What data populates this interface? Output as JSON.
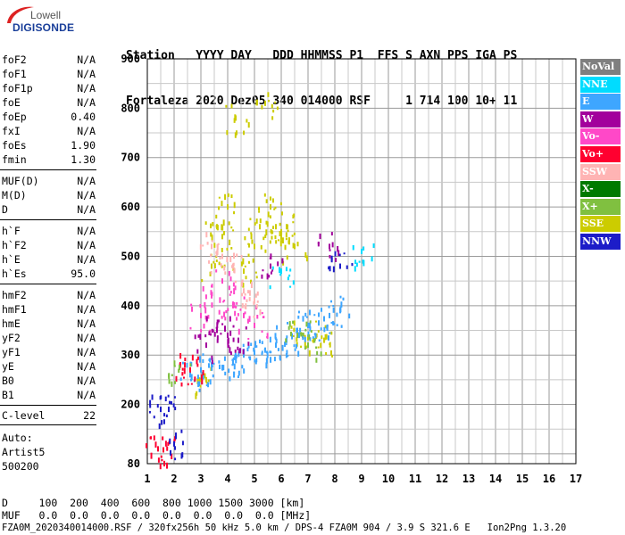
{
  "logo": {
    "top": "Lowell",
    "bottom": "DIGISONDE"
  },
  "header": {
    "line1": "Station   YYYY DAY   DDD HHMMSS P1  FFS S AXN PPS IGA PS",
    "line2": "Fortaleza 2020 Dez05 340 014000 RSF     1 714 100 10+ 11"
  },
  "params": {
    "g1": [
      {
        "name": "foF2",
        "value": "N/A"
      },
      {
        "name": "foF1",
        "value": "N/A"
      },
      {
        "name": "foF1p",
        "value": "N/A"
      },
      {
        "name": "foE",
        "value": "N/A"
      },
      {
        "name": "foEp",
        "value": "0.40"
      },
      {
        "name": "fxI",
        "value": "N/A"
      },
      {
        "name": "foEs",
        "value": "1.90"
      },
      {
        "name": "fmin",
        "value": "1.30"
      }
    ],
    "g2": [
      {
        "name": "MUF(D)",
        "value": "N/A"
      },
      {
        "name": "M(D)",
        "value": "N/A"
      },
      {
        "name": "D",
        "value": "N/A"
      }
    ],
    "g3": [
      {
        "name": "h`F",
        "value": "N/A"
      },
      {
        "name": "h`F2",
        "value": "N/A"
      },
      {
        "name": "h`E",
        "value": "N/A"
      },
      {
        "name": "h`Es",
        "value": "95.0"
      }
    ],
    "g4": [
      {
        "name": "hmF2",
        "value": "N/A"
      },
      {
        "name": "hmF1",
        "value": "N/A"
      },
      {
        "name": "hmE",
        "value": "N/A"
      },
      {
        "name": "yF2",
        "value": "N/A"
      },
      {
        "name": "yF1",
        "value": "N/A"
      },
      {
        "name": "yE",
        "value": "N/A"
      },
      {
        "name": "B0",
        "value": "N/A"
      },
      {
        "name": "B1",
        "value": "N/A"
      }
    ],
    "clevel": {
      "name": "C-level",
      "value": "22"
    }
  },
  "auto": {
    "line1": "Auto:",
    "line2": "Artist5",
    "line3": "500200"
  },
  "bottom": {
    "line1": "D     100  200  400  600  800 1000 1500 3000 [km]",
    "line2": "MUF   0.0  0.0  0.0  0.0  0.0  0.0  0.0  0.0 [MHz]",
    "line3": "FZA0M_2020340014000.RSF / 320fx256h 50 kHz 5.0 km / DPS-4 FZA0M 904 / 3.9 S 321.6 E   Ion2Png 1.3.20"
  },
  "legend": [
    {
      "label": "NoVal",
      "color": "#7f7f7f"
    },
    {
      "label": "NNE",
      "color": "#00dcff"
    },
    {
      "label": "E",
      "color": "#3ea6ff"
    },
    {
      "label": "W",
      "color": "#a2009c"
    },
    {
      "label": "Vo-",
      "color": "#ff48c8"
    },
    {
      "label": "Vo+",
      "color": "#ff0030"
    },
    {
      "label": "SSW",
      "color": "#ffb4b4"
    },
    {
      "label": "X-",
      "color": "#007a00"
    },
    {
      "label": "X+",
      "color": "#80c040"
    },
    {
      "label": "SSE",
      "color": "#cccc00"
    },
    {
      "label": "NNW",
      "color": "#1c1cc8"
    }
  ],
  "chart_data": {
    "type": "scatter",
    "xlim": [
      1,
      17
    ],
    "ylim": [
      80,
      900
    ],
    "x_ticks": [
      1,
      2,
      3,
      4,
      5,
      6,
      7,
      8,
      9,
      10,
      11,
      12,
      13,
      14,
      15,
      16,
      17
    ],
    "y_ticks": [
      80,
      200,
      300,
      400,
      500,
      600,
      700,
      800,
      900
    ],
    "grid": true,
    "legend_placement": "right",
    "series": [
      {
        "name": "SSE",
        "color": "#cccc00",
        "points": [
          [
            3.2,
            250
          ],
          [
            3.4,
            480
          ],
          [
            3.6,
            560
          ],
          [
            3.8,
            540
          ],
          [
            4.0,
            600
          ],
          [
            4.3,
            780
          ],
          [
            4.6,
            470
          ],
          [
            5.0,
            520
          ],
          [
            5.2,
            560
          ],
          [
            5.4,
            810
          ],
          [
            5.6,
            600
          ],
          [
            5.8,
            560
          ],
          [
            6.0,
            540
          ],
          [
            6.2,
            560
          ],
          [
            6.5,
            520
          ],
          [
            6.8,
            340
          ],
          [
            7.2,
            330
          ],
          [
            7.6,
            330
          ]
        ]
      },
      {
        "name": "E",
        "color": "#3ea6ff",
        "points": [
          [
            2.6,
            260
          ],
          [
            3.0,
            270
          ],
          [
            3.4,
            280
          ],
          [
            3.8,
            275
          ],
          [
            4.2,
            285
          ],
          [
            4.6,
            300
          ],
          [
            5.0,
            305
          ],
          [
            5.4,
            310
          ],
          [
            5.8,
            320
          ],
          [
            6.2,
            330
          ],
          [
            6.6,
            350
          ],
          [
            7.0,
            360
          ],
          [
            7.4,
            365
          ],
          [
            7.8,
            380
          ],
          [
            8.2,
            390
          ]
        ]
      },
      {
        "name": "Vo-",
        "color": "#ff48c8",
        "points": [
          [
            3.0,
            380
          ],
          [
            3.4,
            420
          ],
          [
            3.8,
            450
          ],
          [
            4.2,
            400
          ],
          [
            4.6,
            380
          ],
          [
            5.0,
            360
          ]
        ]
      },
      {
        "name": "SSW",
        "color": "#ffb4b4",
        "points": [
          [
            3.4,
            520
          ],
          [
            3.8,
            500
          ],
          [
            4.2,
            480
          ],
          [
            4.6,
            430
          ],
          [
            5.0,
            410
          ]
        ]
      },
      {
        "name": "W",
        "color": "#a2009c",
        "points": [
          [
            3.2,
            320
          ],
          [
            3.6,
            350
          ],
          [
            4.0,
            340
          ],
          [
            4.4,
            330
          ],
          [
            5.6,
            480
          ],
          [
            7.8,
            520
          ]
        ]
      },
      {
        "name": "Vo+",
        "color": "#ff0030",
        "points": [
          [
            2.4,
            280
          ],
          [
            2.6,
            270
          ],
          [
            1.4,
            110
          ],
          [
            1.6,
            108
          ]
        ]
      },
      {
        "name": "NNW",
        "color": "#1c1cc8",
        "points": [
          [
            1.5,
            190
          ],
          [
            1.8,
            190
          ],
          [
            2.0,
            120
          ],
          [
            8.2,
            480
          ]
        ]
      },
      {
        "name": "X+",
        "color": "#80c040",
        "points": [
          [
            2.2,
            275
          ],
          [
            6.6,
            340
          ],
          [
            7.0,
            320
          ]
        ]
      },
      {
        "name": "NNE",
        "color": "#00dcff",
        "points": [
          [
            9.0,
            510
          ],
          [
            6.0,
            470
          ]
        ]
      }
    ]
  }
}
